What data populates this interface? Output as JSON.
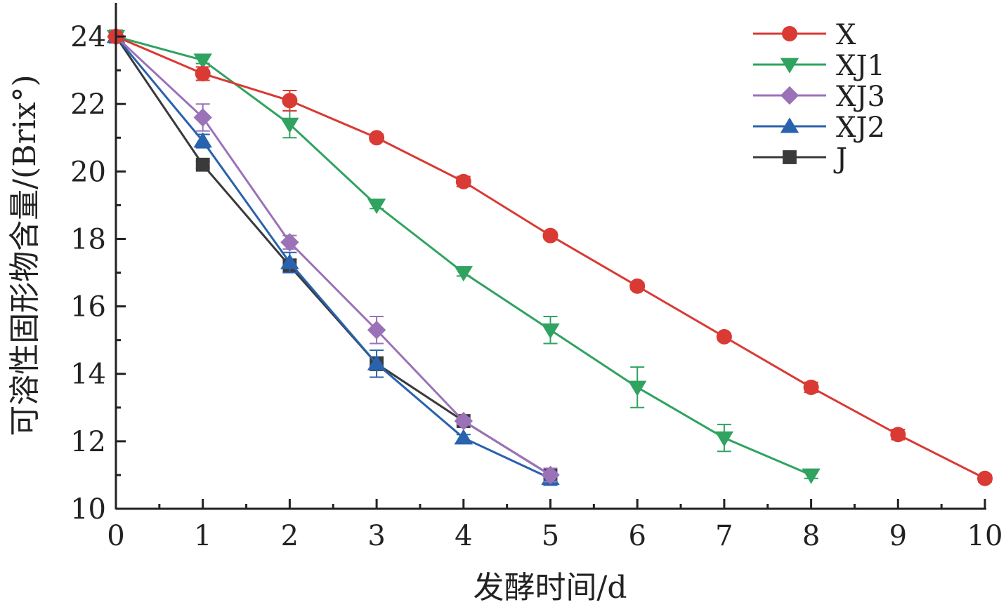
{
  "chart_data": {
    "type": "line",
    "title": "",
    "xlabel": "发酵时间/d",
    "ylabel": "可溶性固形物含量/(Brix°)",
    "xlim": [
      0,
      10
    ],
    "ylim": [
      10,
      25
    ],
    "xticks": [
      "0",
      "1",
      "2",
      "3",
      "4",
      "5",
      "6",
      "7",
      "8",
      "9",
      "10"
    ],
    "yticks": [
      "10",
      "12",
      "14",
      "16",
      "18",
      "20",
      "22",
      "24"
    ],
    "legend_position": "top-right",
    "grid": false,
    "series": [
      {
        "name": "X",
        "color": "#d93a34",
        "marker": "circle",
        "x": [
          0,
          1,
          2,
          3,
          4,
          5,
          6,
          7,
          8,
          9,
          10
        ],
        "y": [
          24.0,
          22.9,
          22.1,
          21.0,
          19.7,
          18.1,
          16.6,
          15.1,
          13.6,
          12.2,
          10.9
        ],
        "err": [
          0.1,
          0.2,
          0.3,
          0.1,
          0.15,
          0.1,
          0.1,
          0.1,
          0.15,
          0.15,
          0.1
        ]
      },
      {
        "name": "XJ1",
        "color": "#2fa35f",
        "marker": "triangle-down",
        "x": [
          0,
          1,
          2,
          3,
          4,
          5,
          6,
          7,
          8
        ],
        "y": [
          24.0,
          23.3,
          21.4,
          19.0,
          17.0,
          15.3,
          13.6,
          12.1,
          11.0
        ],
        "err": [
          0.1,
          0.1,
          0.4,
          0.1,
          0.1,
          0.4,
          0.6,
          0.4,
          0.1
        ]
      },
      {
        "name": "XJ3",
        "color": "#9b72b8",
        "marker": "diamond",
        "x": [
          0,
          1,
          2,
          3,
          4,
          5
        ],
        "y": [
          24.0,
          21.6,
          17.9,
          15.3,
          12.6,
          11.0
        ],
        "err": [
          0.1,
          0.4,
          0.2,
          0.4,
          0.1,
          0.2
        ]
      },
      {
        "name": "XJ2",
        "color": "#2962ad",
        "marker": "triangle-up",
        "x": [
          0,
          1,
          2,
          3,
          4,
          5
        ],
        "y": [
          24.0,
          20.9,
          17.3,
          14.3,
          12.1,
          10.9
        ],
        "err": [
          0.1,
          0.2,
          0.3,
          0.4,
          0.1,
          0.2
        ]
      },
      {
        "name": "J",
        "color": "#3a3a3a",
        "marker": "square",
        "x": [
          0,
          1,
          2,
          3,
          4,
          5
        ],
        "y": [
          24.0,
          20.2,
          17.2,
          14.3,
          12.6,
          11.0
        ],
        "err": [
          0.1,
          0.1,
          0.2,
          0.2,
          0.1,
          0.1
        ]
      }
    ]
  }
}
